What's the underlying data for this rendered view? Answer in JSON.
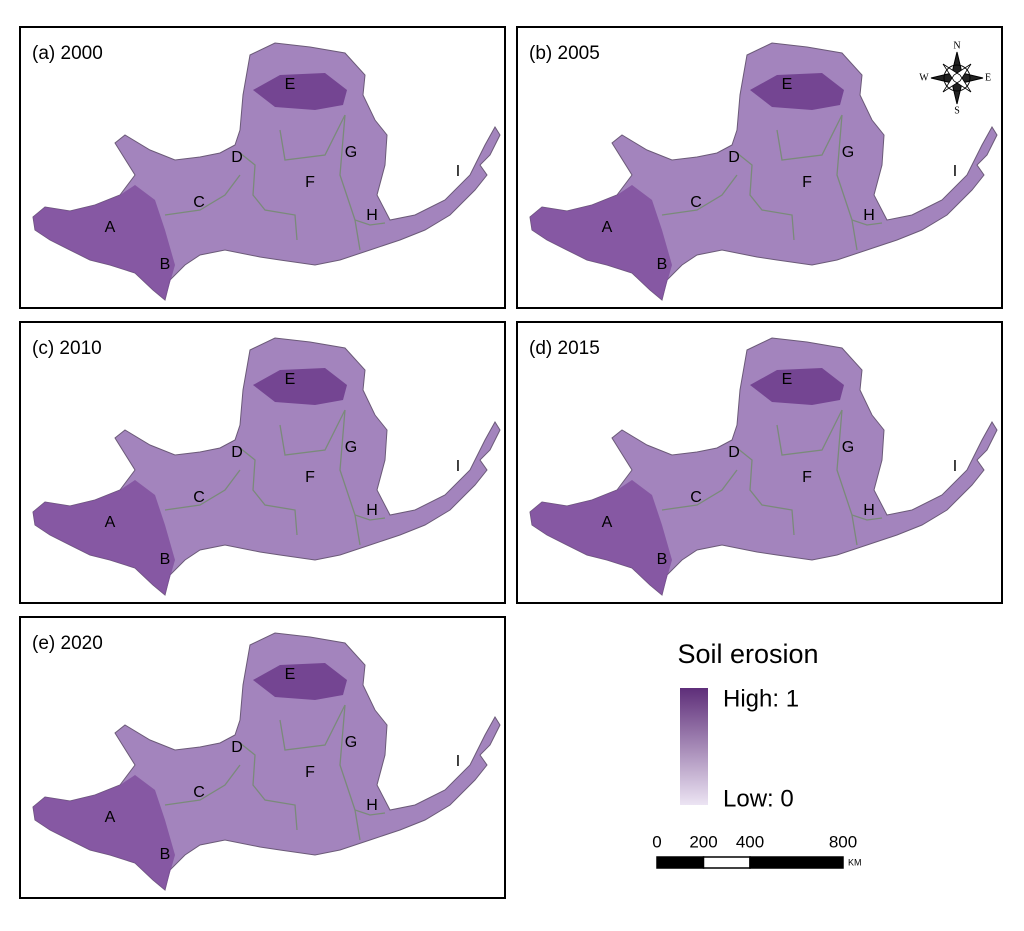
{
  "panels": [
    {
      "label": "(a) 2000"
    },
    {
      "label": "(b) 2005"
    },
    {
      "label": "(c) 2010"
    },
    {
      "label": "(d) 2015"
    },
    {
      "label": "(e) 2020"
    }
  ],
  "regions": [
    "A",
    "B",
    "C",
    "D",
    "E",
    "F",
    "G",
    "H",
    "I"
  ],
  "compass": {
    "north": "N",
    "south": "S",
    "west": "W",
    "east": "E"
  },
  "legend": {
    "title": "Soil erosion",
    "high": "High: 1",
    "low": "Low: 0"
  },
  "scale_bar": {
    "ticks": [
      0,
      200,
      400,
      800
    ],
    "unit": "KM"
  }
}
